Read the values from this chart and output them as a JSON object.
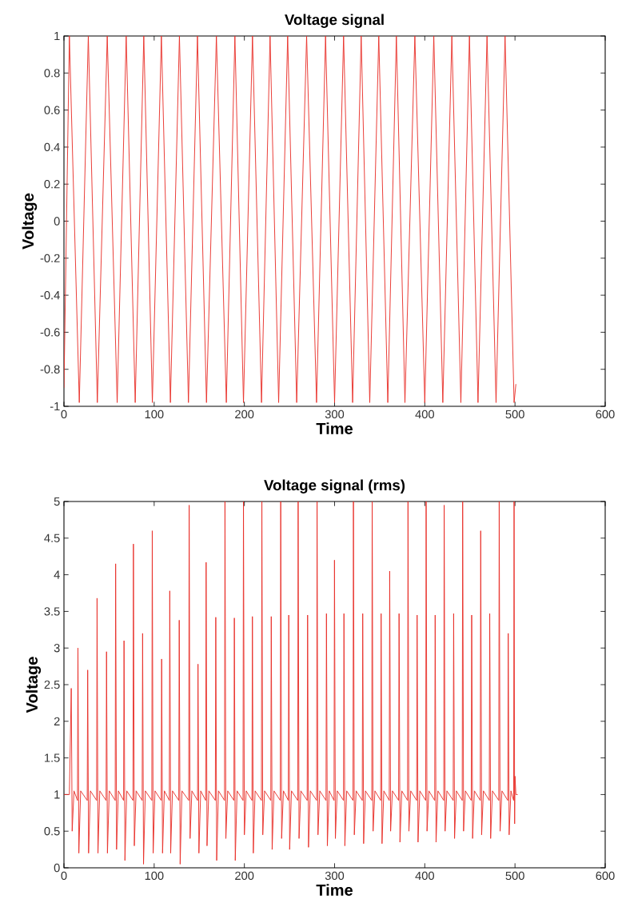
{
  "chart_data": [
    {
      "type": "line",
      "title": "Voltage signal",
      "xlabel": "Time",
      "ylabel": "Voltage",
      "color": "#e8302a",
      "xlim": [
        0,
        600
      ],
      "ylim": [
        -1,
        1
      ],
      "xticks": [
        0,
        100,
        200,
        300,
        400,
        500,
        600
      ],
      "yticks": [
        -1,
        -0.8,
        -0.6,
        -0.4,
        -0.2,
        0,
        0.2,
        0.4,
        0.6,
        0.8,
        1
      ],
      "x": [
        0,
        6,
        17,
        27,
        37,
        48,
        59,
        69,
        79,
        88.5,
        98,
        108,
        118,
        128,
        138,
        148,
        158,
        169,
        180,
        189.5,
        199,
        209,
        219,
        228.5,
        238,
        248,
        258,
        269,
        280,
        290,
        300,
        310,
        320,
        329.5,
        339,
        349,
        359,
        368.5,
        378,
        389,
        400,
        410,
        420,
        430,
        440,
        449.5,
        459,
        469,
        479,
        489,
        499,
        501
      ],
      "values": [
        -0.9,
        1,
        -0.98,
        1,
        -0.98,
        1,
        -0.98,
        1,
        -0.98,
        1,
        -0.98,
        1,
        -0.98,
        1,
        -0.98,
        1,
        -0.98,
        1,
        -0.98,
        1,
        -0.98,
        1,
        -0.98,
        1,
        -0.98,
        1,
        -0.98,
        1,
        -0.98,
        1,
        -0.98,
        1,
        -0.98,
        1,
        -0.98,
        1,
        -0.98,
        1,
        -0.98,
        1,
        -0.98,
        1,
        -0.98,
        1,
        -0.98,
        1,
        -0.98,
        1,
        -0.98,
        1,
        -0.98,
        -0.88
      ]
    },
    {
      "type": "line",
      "title": "Voltage signal (rms)",
      "xlabel": "Time",
      "ylabel": "Voltage",
      "color": "#e8302a",
      "xlim": [
        0,
        600
      ],
      "ylim": [
        0,
        5
      ],
      "xticks": [
        0,
        100,
        200,
        300,
        400,
        500,
        600
      ],
      "yticks": [
        0,
        0.5,
        1,
        1.5,
        2,
        2.5,
        3,
        3.5,
        4,
        4.5,
        5
      ],
      "x": [
        0,
        6,
        8.1,
        9.1,
        11.1,
        15.0,
        15.5,
        16.5,
        18.5,
        25.8,
        26.3,
        27.3,
        29.3,
        36.2,
        36.7,
        37.7,
        39.7,
        46.7,
        47.2,
        48.2,
        50.2,
        56.8,
        57.3,
        58.3,
        60.3,
        66.1,
        66.6,
        67.6,
        69.6,
        76.5,
        77,
        78,
        80,
        86.7,
        87.2,
        88.2,
        90.2,
        97.4,
        97.9,
        98.9,
        100.9,
        107.8,
        108.3,
        109.3,
        111.3,
        116.8,
        117.3,
        118.3,
        120.3,
        127.3,
        127.8,
        128.8,
        130.8,
        138.3,
        138.8,
        139.8,
        141.8,
        148.1,
        148.6,
        149.6,
        151.6,
        157.1,
        157.6,
        158.6,
        160.6,
        167.8,
        168.3,
        169.3,
        171.3,
        178,
        178.5,
        179.5,
        181.5,
        188.4,
        188.9,
        189.9,
        191.9,
        198.5,
        199,
        200,
        202,
        208.4,
        208.9,
        209.9,
        211.9,
        218.9,
        219.4,
        220.4,
        222.4,
        229.3,
        229.8,
        230.8,
        232.8,
        239.8,
        240.3,
        241.3,
        243.3,
        248.7,
        249.2,
        250.2,
        252.2,
        259.1,
        259.6,
        260.6,
        262.6,
        269.6,
        270.1,
        271.1,
        273.1,
        280.1,
        280.6,
        281.6,
        283.6,
        290.5,
        291,
        292,
        294,
        299.4,
        299.9,
        300.9,
        302.9,
        309.9,
        310.4,
        311.4,
        313.4,
        320.4,
        320.9,
        321.9,
        323.9,
        330.7,
        331.2,
        332.2,
        334.2,
        341.2,
        341.7,
        342.7,
        344.7,
        351.1,
        351.6,
        352.6,
        354.6,
        360.6,
        361.1,
        362.1,
        364.1,
        371,
        371.5,
        372.5,
        374.5,
        380.9,
        381.4,
        382.4,
        384.4,
        391,
        391.5,
        392.5,
        394.5,
        401,
        401.5,
        402.5,
        404.5,
        411,
        411.5,
        412.5,
        414.5,
        421,
        421.5,
        422.5,
        424.5,
        431.5,
        432,
        433,
        435,
        441.5,
        442,
        443,
        445,
        451.5,
        452,
        453,
        455,
        461.5,
        462,
        463,
        465,
        471.5,
        472,
        473,
        475,
        482,
        482.5,
        483.5,
        485.5,
        492,
        492.5,
        493.5,
        495.5,
        498.5,
        499,
        499.6,
        500,
        501,
        503
      ],
      "values": [
        1,
        1,
        2.45,
        0.5,
        1.05,
        0.92,
        3.0,
        0.2,
        1.05,
        0.92,
        2.7,
        0.2,
        1.05,
        0.92,
        3.68,
        0.2,
        1.05,
        0.92,
        2.95,
        0.2,
        1.05,
        0.92,
        4.15,
        0.25,
        1.05,
        0.92,
        3.1,
        0.1,
        1.05,
        0.92,
        4.42,
        0.3,
        1.05,
        0.92,
        3.2,
        0.05,
        1.05,
        0.92,
        4.6,
        0.2,
        1.05,
        0.92,
        2.85,
        0.2,
        1.05,
        0.92,
        3.78,
        0.2,
        1.05,
        0.92,
        3.38,
        0.05,
        1.05,
        0.92,
        4.95,
        0.4,
        1.05,
        0.92,
        2.78,
        0.2,
        1.05,
        0.92,
        4.17,
        0.3,
        1.05,
        0.92,
        3.42,
        0.1,
        1.05,
        0.92,
        5,
        0.4,
        1.05,
        0.92,
        3.41,
        0.1,
        1.05,
        0.92,
        5,
        0.45,
        1.05,
        0.92,
        3.43,
        0.2,
        1.05,
        0.92,
        5,
        0.45,
        1.05,
        0.92,
        3.43,
        0.25,
        1.05,
        0.92,
        5,
        0.4,
        1.05,
        0.92,
        3.45,
        0.25,
        1.05,
        0.92,
        5,
        0.4,
        1.05,
        0.92,
        3.45,
        0.28,
        1.05,
        0.92,
        5,
        0.45,
        1.05,
        0.92,
        3.47,
        0.3,
        1.05,
        0.92,
        4.2,
        0.4,
        1.05,
        0.92,
        3.47,
        0.3,
        1.05,
        0.92,
        5,
        0.45,
        1.05,
        0.92,
        3.47,
        0.33,
        1.05,
        0.92,
        5,
        0.5,
        1.05,
        0.92,
        3.47,
        0.33,
        1.05,
        0.92,
        4.05,
        0.5,
        1.05,
        0.92,
        3.47,
        0.35,
        1.05,
        0.92,
        5,
        0.5,
        1.05,
        0.92,
        3.45,
        0.35,
        1.05,
        0.92,
        5,
        0.5,
        1.05,
        0.92,
        3.45,
        0.35,
        1.05,
        0.92,
        4.95,
        0.5,
        1.05,
        0.92,
        3.47,
        0.4,
        1.05,
        0.92,
        5,
        0.5,
        1.05,
        0.92,
        3.45,
        0.4,
        1.05,
        0.92,
        4.6,
        0.45,
        1.05,
        0.92,
        3.47,
        0.4,
        1.05,
        0.92,
        5,
        0.5,
        1.05,
        0.92,
        3.2,
        0.45,
        1.05,
        0.92,
        5,
        0.6,
        1.25,
        1.0,
        1.0
      ]
    }
  ]
}
